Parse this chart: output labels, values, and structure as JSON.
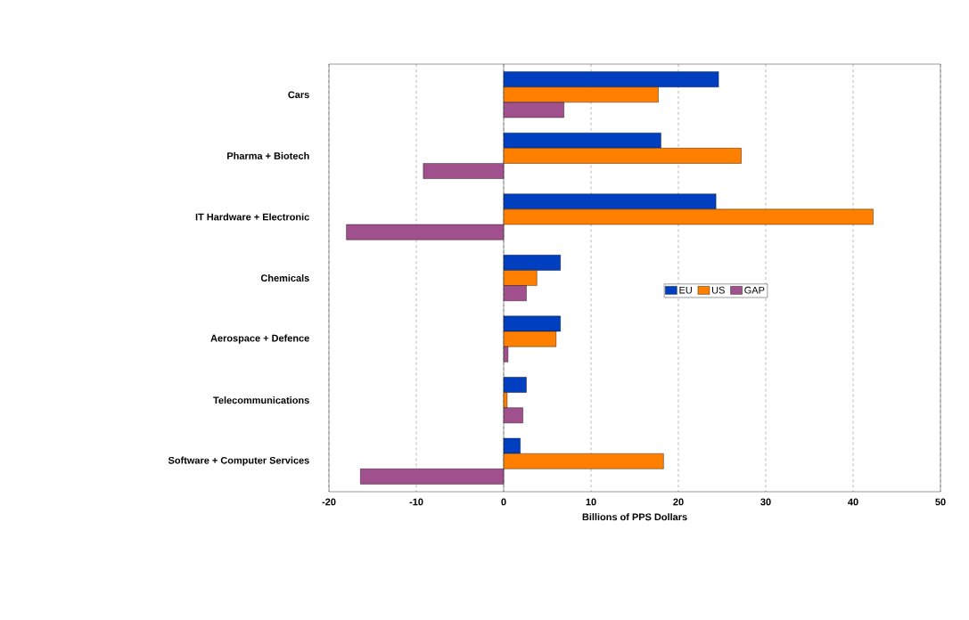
{
  "chart_data": {
    "type": "bar",
    "orientation": "horizontal",
    "categories": [
      "Cars",
      "Pharma + Biotech",
      "IT Hardware + Electronic",
      "Chemicals",
      "Aerospace + Defence",
      "Telecommunications",
      "Software + Computer Services"
    ],
    "series": [
      {
        "name": "EU",
        "color": "#0040c0",
        "values": [
          24.6,
          18.0,
          24.3,
          6.5,
          6.5,
          2.6,
          1.9
        ]
      },
      {
        "name": "US",
        "color": "#ff8000",
        "values": [
          17.7,
          27.2,
          42.3,
          3.8,
          6.0,
          0.4,
          18.3
        ]
      },
      {
        "name": "GAP",
        "color": "#a0508c",
        "values": [
          6.9,
          -9.2,
          -18.0,
          2.6,
          0.5,
          2.2,
          -16.4
        ]
      }
    ],
    "xlabel": "Billions of PPS Dollars",
    "xlim": [
      -20,
      50
    ],
    "xticks": [
      -20,
      -10,
      0,
      10,
      20,
      30,
      40,
      50
    ],
    "grid": "x",
    "line_style": "dashed",
    "legend": "right"
  }
}
